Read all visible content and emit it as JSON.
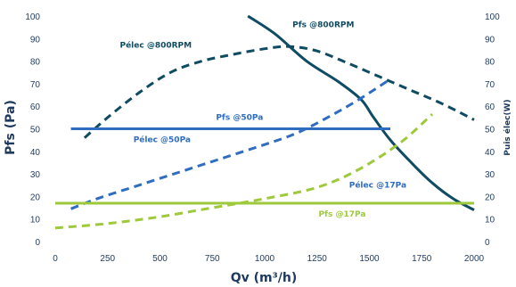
{
  "chart_data": {
    "type": "line",
    "xlabel": "Qv (m³/h)",
    "ylabel_left": "Pfs (Pa)",
    "ylabel_right": "Puis élec(W)",
    "xlim": [
      0,
      2000
    ],
    "ylim_left": [
      0,
      100
    ],
    "ylim_right": [
      0,
      100
    ],
    "x_ticks": [
      "0",
      "250",
      "500",
      "750",
      "1000",
      "1250",
      "1500",
      "1750",
      "2000"
    ],
    "y_ticks_left": [
      "0",
      "10",
      "20",
      "30",
      "40",
      "50",
      "60",
      "70",
      "80",
      "90",
      "100"
    ],
    "y_ticks_right": [
      "0",
      "10",
      "20",
      "30",
      "40",
      "50",
      "60",
      "70",
      "80",
      "90",
      "100"
    ],
    "grid": false,
    "colors": {
      "dark": "#0f4c63",
      "blue": "#2e6dbf",
      "green": "#9dc93b",
      "text": "#1e3a5f"
    },
    "series": [
      {
        "name": "Pfs @800RPM",
        "style": "solid",
        "color": "#0f4c63",
        "x": [
          920,
          1050,
          1200,
          1350,
          1460,
          1520,
          1600,
          1700,
          1800,
          1900,
          2000
        ],
        "y": [
          100,
          92,
          80,
          71,
          63,
          55,
          45,
          35,
          26,
          19,
          14
        ]
      },
      {
        "name": "Pélec @800RPM",
        "style": "dashed",
        "color": "#0f4c63",
        "x": [
          140,
          250,
          400,
          550,
          700,
          850,
          1000,
          1120,
          1250,
          1400,
          1550,
          1700,
          1850,
          2000
        ],
        "y": [
          46,
          55,
          66,
          75,
          80,
          83,
          85.5,
          86.5,
          84.5,
          79,
          73,
          67,
          61,
          54
        ]
      },
      {
        "name": "Pfs @50Pa",
        "style": "solid",
        "color": "#2e6dbf",
        "x": [
          75,
          1600
        ],
        "y": [
          50,
          50
        ]
      },
      {
        "name": "Pélec @50Pa",
        "style": "dashed",
        "color": "#2e6dbf",
        "x": [
          75,
          200,
          400,
          600,
          800,
          1000,
          1150,
          1300,
          1450,
          1600
        ],
        "y": [
          14.5,
          19,
          25,
          31,
          37,
          43,
          48,
          55,
          63,
          72
        ]
      },
      {
        "name": "Pfs @17Pa",
        "style": "solid",
        "color": "#9dc93b",
        "x": [
          0,
          2000
        ],
        "y": [
          17,
          17
        ]
      },
      {
        "name": "Pélec @17Pa",
        "style": "dashed",
        "color": "#9dc93b",
        "x": [
          0,
          250,
          500,
          750,
          1000,
          1250,
          1450,
          1650,
          1800
        ],
        "y": [
          6,
          8,
          11,
          15,
          19,
          24,
          32,
          44,
          56.5
        ]
      }
    ],
    "annotations": [
      {
        "text": "Pfs @800RPM",
        "color": "#0f4c63",
        "x": 1280,
        "y": 95
      },
      {
        "text": "Pélec @800RPM",
        "color": "#0f4c63",
        "x": 480,
        "y": 86
      },
      {
        "text": "Pfs @50Pa",
        "color": "#2e6dbf",
        "x": 880,
        "y": 54
      },
      {
        "text": "Pélec @50Pa",
        "color": "#2e6dbf",
        "x": 510,
        "y": 44
      },
      {
        "text": "Pélec @17Pa",
        "color": "#2e6dbf",
        "x": 1540,
        "y": 24
      },
      {
        "text": "Pfs @17Pa",
        "color": "#9dc93b",
        "x": 1370,
        "y": 11
      }
    ]
  }
}
